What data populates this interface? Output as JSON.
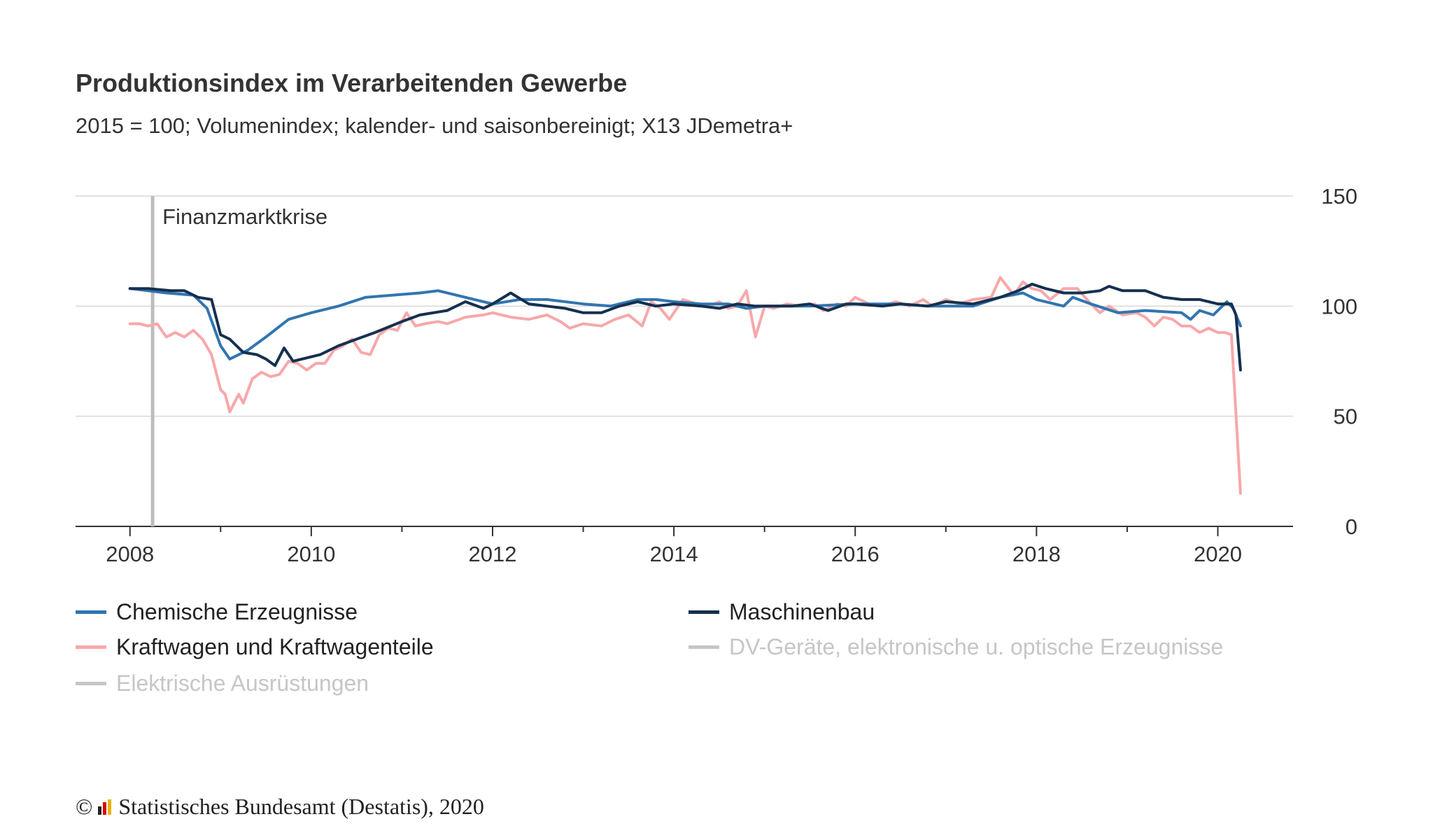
{
  "title": "Produktionsindex im Verarbeitenden Gewerbe",
  "subtitle": "2015 = 100; Volumenindex; kalender- und saisonbereinigt; X13 JDemetra+",
  "annotation": "Finanzmarktkrise",
  "footer": {
    "copyright": "©",
    "text": "Statistisches Bundesamt (Destatis), 2020"
  },
  "colors": {
    "chemie": "#3175b0",
    "maschinen": "#15304f",
    "kfz": "#f7a8aa",
    "muted": "#c6c6c6",
    "grid": "#d9d9d9",
    "axis": "#333333"
  },
  "chart_data": {
    "type": "line",
    "title": "Produktionsindex im Verarbeitenden Gewerbe",
    "subtitle": "2015 = 100; Volumenindex; kalender- und saisonbereinigt; X13 JDemetra+",
    "x_range": [
      2007.4,
      2020.83
    ],
    "ylim": [
      0,
      150
    ],
    "y_ticks": [
      0,
      50,
      100,
      150
    ],
    "x_ticks": [
      2008,
      2010,
      2012,
      2014,
      2016,
      2018,
      2020
    ],
    "x_tick_labels": [
      "2008",
      "2010",
      "2012",
      "2014",
      "2016",
      "2018",
      "2020"
    ],
    "grid": true,
    "y_axis_position": "right",
    "legend_position": "bottom",
    "annotations": [
      {
        "x": 2008.25,
        "label": "Finanzmarktkrise"
      }
    ],
    "series": [
      {
        "name": "Chemische Erzeugnisse",
        "color": "#3175b0",
        "visible": true,
        "points": [
          [
            2008.0,
            108
          ],
          [
            2008.4,
            106
          ],
          [
            2008.7,
            105
          ],
          [
            2008.85,
            99
          ],
          [
            2009.0,
            82
          ],
          [
            2009.1,
            76
          ],
          [
            2009.3,
            80
          ],
          [
            2009.5,
            86
          ],
          [
            2009.75,
            94
          ],
          [
            2010.0,
            97
          ],
          [
            2010.3,
            100
          ],
          [
            2010.6,
            104
          ],
          [
            2010.9,
            105
          ],
          [
            2011.2,
            106
          ],
          [
            2011.4,
            107
          ],
          [
            2011.8,
            103
          ],
          [
            2012.0,
            101
          ],
          [
            2012.3,
            103
          ],
          [
            2012.6,
            103
          ],
          [
            2013.0,
            101
          ],
          [
            2013.3,
            100
          ],
          [
            2013.6,
            103
          ],
          [
            2013.8,
            103
          ],
          [
            2014.0,
            102
          ],
          [
            2014.3,
            101
          ],
          [
            2014.6,
            101
          ],
          [
            2014.8,
            99
          ],
          [
            2015.0,
            100
          ],
          [
            2015.5,
            100
          ],
          [
            2016.0,
            101
          ],
          [
            2016.5,
            101
          ],
          [
            2016.8,
            100
          ],
          [
            2017.0,
            100
          ],
          [
            2017.3,
            100
          ],
          [
            2017.6,
            104
          ],
          [
            2017.85,
            106
          ],
          [
            2018.0,
            103
          ],
          [
            2018.3,
            100
          ],
          [
            2018.4,
            104
          ],
          [
            2018.6,
            101
          ],
          [
            2018.9,
            97
          ],
          [
            2019.2,
            98
          ],
          [
            2019.6,
            97
          ],
          [
            2019.7,
            94
          ],
          [
            2019.8,
            98
          ],
          [
            2019.95,
            96
          ],
          [
            2020.1,
            102
          ],
          [
            2020.17,
            99
          ],
          [
            2020.25,
            91
          ]
        ]
      },
      {
        "name": "Maschinenbau",
        "color": "#15304f",
        "visible": true,
        "points": [
          [
            2008.0,
            108
          ],
          [
            2008.2,
            108
          ],
          [
            2008.45,
            107
          ],
          [
            2008.6,
            107
          ],
          [
            2008.75,
            104
          ],
          [
            2008.9,
            103
          ],
          [
            2009.0,
            87
          ],
          [
            2009.1,
            85
          ],
          [
            2009.25,
            79
          ],
          [
            2009.4,
            78
          ],
          [
            2009.5,
            76
          ],
          [
            2009.6,
            73
          ],
          [
            2009.7,
            81
          ],
          [
            2009.8,
            75
          ],
          [
            2010.0,
            77
          ],
          [
            2010.1,
            78
          ],
          [
            2010.3,
            82
          ],
          [
            2010.5,
            85
          ],
          [
            2010.7,
            88
          ],
          [
            2011.0,
            93
          ],
          [
            2011.2,
            96
          ],
          [
            2011.5,
            98
          ],
          [
            2011.7,
            102
          ],
          [
            2011.9,
            99
          ],
          [
            2012.0,
            101
          ],
          [
            2012.2,
            106
          ],
          [
            2012.4,
            101
          ],
          [
            2012.6,
            100
          ],
          [
            2012.8,
            99
          ],
          [
            2013.0,
            97
          ],
          [
            2013.2,
            97
          ],
          [
            2013.4,
            100
          ],
          [
            2013.6,
            102
          ],
          [
            2013.8,
            100
          ],
          [
            2014.0,
            101
          ],
          [
            2014.3,
            100
          ],
          [
            2014.5,
            99
          ],
          [
            2014.7,
            101
          ],
          [
            2014.9,
            100
          ],
          [
            2015.1,
            100
          ],
          [
            2015.3,
            100
          ],
          [
            2015.5,
            101
          ],
          [
            2015.7,
            98
          ],
          [
            2015.9,
            101
          ],
          [
            2016.0,
            101
          ],
          [
            2016.3,
            100
          ],
          [
            2016.5,
            101
          ],
          [
            2016.8,
            100
          ],
          [
            2017.0,
            102
          ],
          [
            2017.3,
            101
          ],
          [
            2017.6,
            104
          ],
          [
            2017.8,
            107
          ],
          [
            2017.95,
            110
          ],
          [
            2018.1,
            108
          ],
          [
            2018.3,
            106
          ],
          [
            2018.5,
            106
          ],
          [
            2018.7,
            107
          ],
          [
            2018.8,
            109
          ],
          [
            2018.95,
            107
          ],
          [
            2019.2,
            107
          ],
          [
            2019.4,
            104
          ],
          [
            2019.6,
            103
          ],
          [
            2019.8,
            103
          ],
          [
            2020.0,
            101
          ],
          [
            2020.15,
            101
          ],
          [
            2020.2,
            96
          ],
          [
            2020.25,
            71
          ]
        ]
      },
      {
        "name": "Kraftwagen und Kraftwagenteile",
        "color": "#f7a8aa",
        "visible": true,
        "points": [
          [
            2008.0,
            92
          ],
          [
            2008.1,
            92
          ],
          [
            2008.2,
            91
          ],
          [
            2008.3,
            92
          ],
          [
            2008.4,
            86
          ],
          [
            2008.5,
            88
          ],
          [
            2008.6,
            86
          ],
          [
            2008.7,
            89
          ],
          [
            2008.8,
            85
          ],
          [
            2008.9,
            78
          ],
          [
            2009.0,
            62
          ],
          [
            2009.05,
            60
          ],
          [
            2009.1,
            52
          ],
          [
            2009.2,
            60
          ],
          [
            2009.25,
            56
          ],
          [
            2009.35,
            67
          ],
          [
            2009.45,
            70
          ],
          [
            2009.55,
            68
          ],
          [
            2009.65,
            69
          ],
          [
            2009.75,
            75
          ],
          [
            2009.85,
            74
          ],
          [
            2009.95,
            71
          ],
          [
            2010.05,
            74
          ],
          [
            2010.15,
            74
          ],
          [
            2010.25,
            80
          ],
          [
            2010.35,
            82
          ],
          [
            2010.45,
            85
          ],
          [
            2010.55,
            79
          ],
          [
            2010.65,
            78
          ],
          [
            2010.75,
            87
          ],
          [
            2010.85,
            90
          ],
          [
            2010.95,
            89
          ],
          [
            2011.05,
            97
          ],
          [
            2011.15,
            91
          ],
          [
            2011.25,
            92
          ],
          [
            2011.4,
            93
          ],
          [
            2011.5,
            92
          ],
          [
            2011.7,
            95
          ],
          [
            2011.9,
            96
          ],
          [
            2012.0,
            97
          ],
          [
            2012.2,
            95
          ],
          [
            2012.4,
            94
          ],
          [
            2012.6,
            96
          ],
          [
            2012.75,
            93
          ],
          [
            2012.85,
            90
          ],
          [
            2013.0,
            92
          ],
          [
            2013.2,
            91
          ],
          [
            2013.35,
            94
          ],
          [
            2013.5,
            96
          ],
          [
            2013.65,
            91
          ],
          [
            2013.75,
            102
          ],
          [
            2013.85,
            99
          ],
          [
            2013.95,
            94
          ],
          [
            2014.1,
            103
          ],
          [
            2014.25,
            101
          ],
          [
            2014.4,
            100
          ],
          [
            2014.5,
            102
          ],
          [
            2014.6,
            99
          ],
          [
            2014.7,
            100
          ],
          [
            2014.8,
            107
          ],
          [
            2014.9,
            86
          ],
          [
            2015.0,
            100
          ],
          [
            2015.1,
            99
          ],
          [
            2015.25,
            101
          ],
          [
            2015.4,
            100
          ],
          [
            2015.55,
            101
          ],
          [
            2015.65,
            98
          ],
          [
            2015.8,
            101
          ],
          [
            2015.9,
            100
          ],
          [
            2016.0,
            104
          ],
          [
            2016.15,
            101
          ],
          [
            2016.3,
            100
          ],
          [
            2016.45,
            102
          ],
          [
            2016.6,
            100
          ],
          [
            2016.75,
            103
          ],
          [
            2016.85,
            100
          ],
          [
            2017.0,
            103
          ],
          [
            2017.15,
            101
          ],
          [
            2017.3,
            103
          ],
          [
            2017.5,
            104
          ],
          [
            2017.6,
            113
          ],
          [
            2017.75,
            105
          ],
          [
            2017.85,
            111
          ],
          [
            2017.95,
            108
          ],
          [
            2018.05,
            107
          ],
          [
            2018.15,
            103
          ],
          [
            2018.3,
            108
          ],
          [
            2018.45,
            108
          ],
          [
            2018.6,
            101
          ],
          [
            2018.7,
            97
          ],
          [
            2018.8,
            100
          ],
          [
            2018.95,
            96
          ],
          [
            2019.1,
            97
          ],
          [
            2019.2,
            95
          ],
          [
            2019.3,
            91
          ],
          [
            2019.4,
            95
          ],
          [
            2019.5,
            94
          ],
          [
            2019.6,
            91
          ],
          [
            2019.7,
            91
          ],
          [
            2019.8,
            88
          ],
          [
            2019.9,
            90
          ],
          [
            2020.0,
            88
          ],
          [
            2020.08,
            88
          ],
          [
            2020.15,
            87
          ],
          [
            2020.25,
            15
          ]
        ]
      },
      {
        "name": "DV-Geräte, elektronische u. optische Erzeugnisse",
        "color": "#c6c6c6",
        "visible": false,
        "points": []
      },
      {
        "name": "Elektrische Ausrüstungen",
        "color": "#c6c6c6",
        "visible": false,
        "points": []
      }
    ]
  },
  "legend": [
    {
      "label": "Chemische Erzeugnisse",
      "color": "#3175b0",
      "active": true
    },
    {
      "label": "Maschinenbau",
      "color": "#15304f",
      "active": true
    },
    {
      "label": "Kraftwagen und Kraftwagenteile",
      "color": "#f7a8aa",
      "active": true
    },
    {
      "label": "DV-Geräte, elektronische u. optische Erzeugnisse",
      "color": "#c6c6c6",
      "active": false
    },
    {
      "label": "Elektrische Ausrüstungen",
      "color": "#c6c6c6",
      "active": false
    }
  ]
}
